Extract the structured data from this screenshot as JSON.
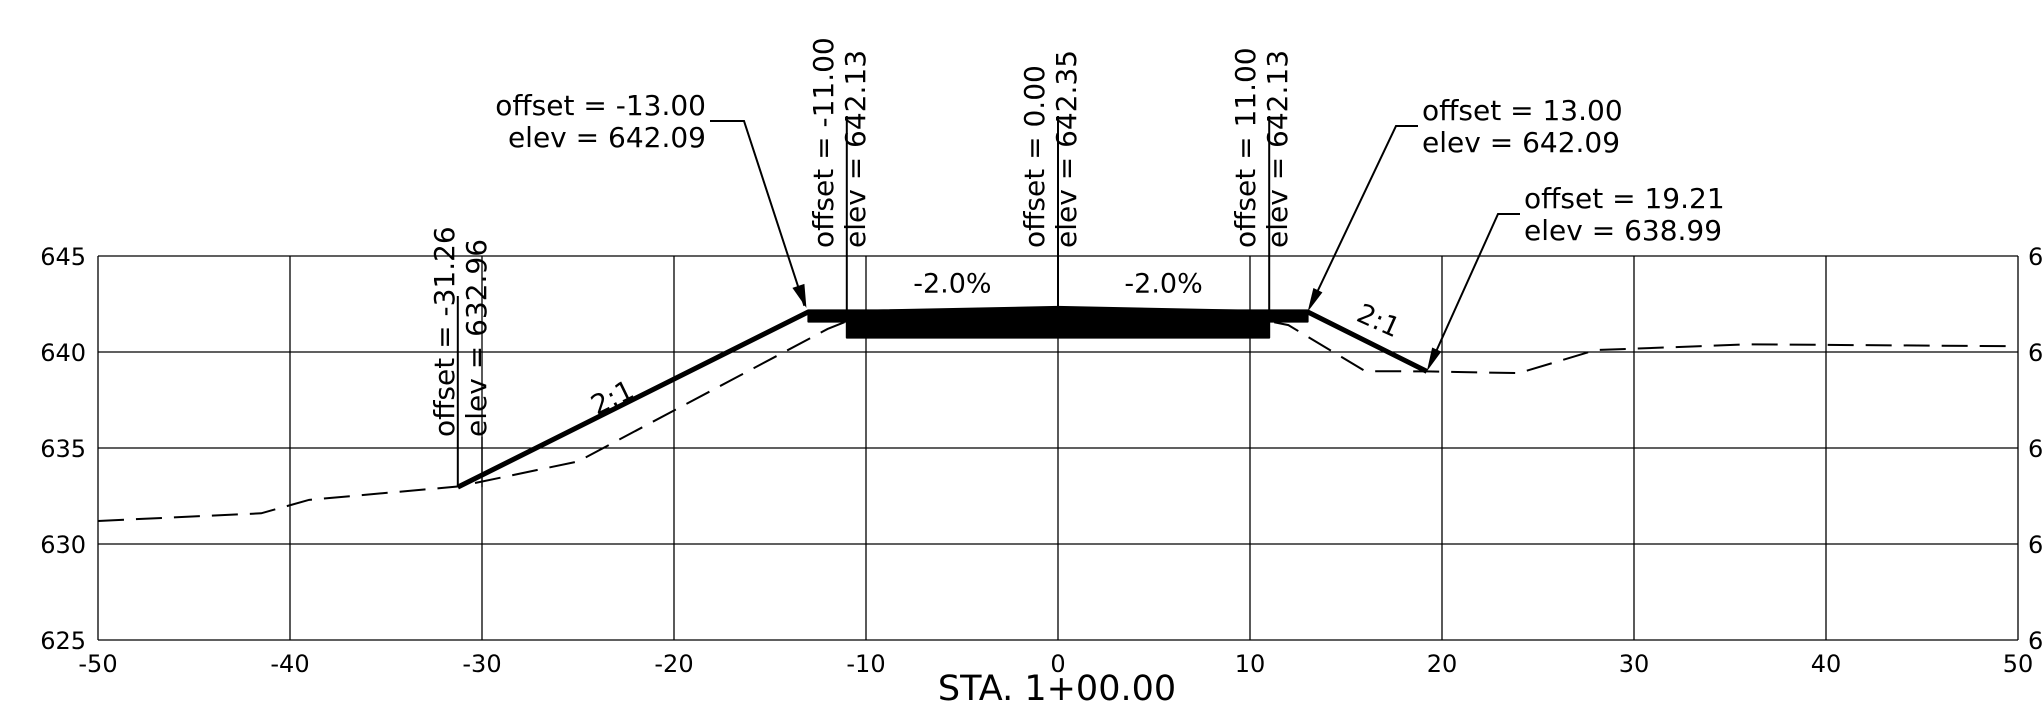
{
  "title": "STA. 1+00.00",
  "chart_data": {
    "type": "cross-section",
    "x_range": [
      -50,
      50
    ],
    "y_range": [
      625,
      645
    ],
    "x_ticks": [
      -50,
      -40,
      -30,
      -20,
      -10,
      0,
      10,
      20,
      30,
      40,
      50
    ],
    "y_ticks": [
      625,
      630,
      635,
      640,
      645
    ],
    "x_tick_labels": [
      "-50",
      "-40",
      "-30",
      "-20",
      "-10",
      "0",
      "10",
      "20",
      "30",
      "40",
      "50"
    ],
    "y_tick_labels": [
      "625",
      "630",
      "635",
      "640",
      "645"
    ],
    "right_tick_labels": [
      "6",
      "6",
      "6",
      "6",
      "6"
    ],
    "grid": true,
    "existing_ground": [
      [
        -50,
        631.2
      ],
      [
        -41.5,
        631.6
      ],
      [
        -39,
        632.3
      ],
      [
        -31.2,
        633.0
      ],
      [
        -25,
        634.3
      ],
      [
        -12,
        641.2
      ],
      [
        -11,
        641.6
      ],
      [
        11,
        641.6
      ],
      [
        12,
        641.4
      ],
      [
        16,
        639.0
      ],
      [
        19.2,
        638.99
      ],
      [
        24,
        638.9
      ],
      [
        28,
        640.1
      ],
      [
        36,
        640.4
      ],
      [
        50,
        640.3
      ]
    ],
    "proposed_surface": [
      [
        -31.26,
        632.96
      ],
      [
        -13.0,
        642.09
      ],
      [
        13.0,
        642.09
      ],
      [
        19.21,
        638.99
      ]
    ],
    "pavement": {
      "top": [
        [
          -11.0,
          642.13
        ],
        [
          0.0,
          642.35
        ],
        [
          11.0,
          642.13
        ]
      ],
      "bottom_elev": 640.75,
      "bottom_extent": [
        -11.0,
        11.0
      ],
      "shoulder_extent": [
        -13.0,
        13.0
      ]
    },
    "slope_labels": [
      {
        "text": "2:1",
        "x": -23.0,
        "y": 637.2
      },
      {
        "text": "-2.0%",
        "x": -5.5,
        "y": 643.1
      },
      {
        "text": "-2.0%",
        "x": 5.5,
        "y": 643.1
      },
      {
        "text": "2:1",
        "x": 16.5,
        "y": 641.2
      }
    ],
    "annotations": [
      {
        "id": "pt-m31",
        "offset_text": "offset = -31.26",
        "elev_text": "elev = 632.96",
        "x": -31.26,
        "y": 632.96,
        "style": "vertical"
      },
      {
        "id": "pt-m13",
        "offset_text": "offset = -13.00",
        "elev_text": "elev = 642.09",
        "x": -13.0,
        "y": 642.09,
        "style": "leader-left"
      },
      {
        "id": "pt-m11",
        "offset_text": "offset = -11.00",
        "elev_text": "elev = 642.13",
        "x": -11.0,
        "y": 642.13,
        "style": "vertical"
      },
      {
        "id": "pt-0",
        "offset_text": "offset = 0.00",
        "elev_text": "elev = 642.35",
        "x": 0.0,
        "y": 642.35,
        "style": "vertical"
      },
      {
        "id": "pt-11",
        "offset_text": "offset = 11.00",
        "elev_text": "elev = 642.13",
        "x": 11.0,
        "y": 642.13,
        "style": "vertical"
      },
      {
        "id": "pt-13",
        "offset_text": "offset = 13.00",
        "elev_text": "elev = 642.09",
        "x": 13.0,
        "y": 642.09,
        "style": "leader-right"
      },
      {
        "id": "pt-19",
        "offset_text": "offset = 19.21",
        "elev_text": "elev = 638.99",
        "x": 19.21,
        "y": 638.99,
        "style": "leader-right"
      }
    ]
  }
}
